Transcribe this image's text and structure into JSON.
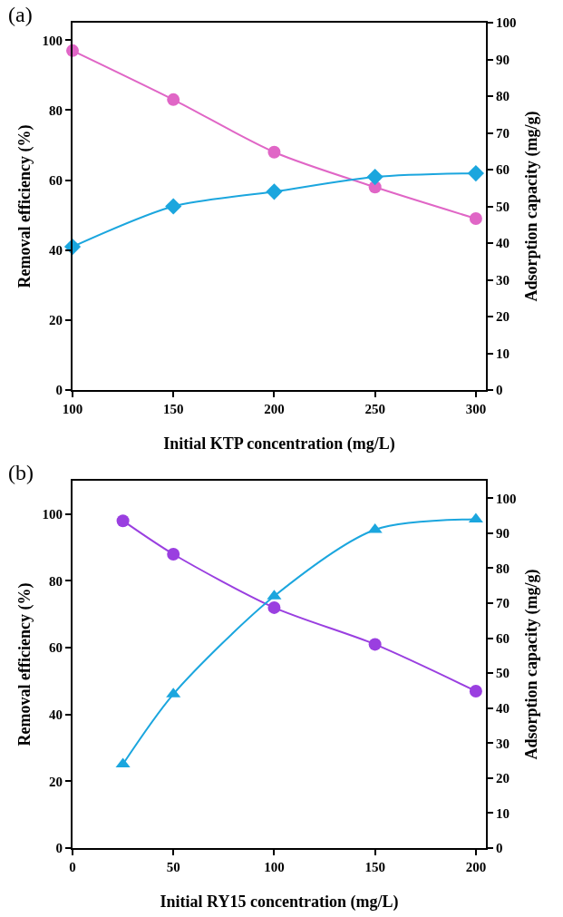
{
  "chart_data": [
    {
      "type": "line",
      "title": "(a)",
      "xlabel": "Initial KTP concentration (mg/L)",
      "ylabel": "Removal efficiency (%)",
      "y2label": "Adsorption capacity (mg/g)",
      "x": [
        100,
        150,
        200,
        250,
        300
      ],
      "series": [
        {
          "color": "#e066c6",
          "marker": "circle",
          "values": [
            97,
            83,
            68,
            58,
            49
          ]
        },
        {
          "color": "#1ba6de",
          "marker": "diamond",
          "axis": "y2",
          "values": [
            39,
            50,
            54,
            58,
            59
          ]
        }
      ],
      "xlim": [
        100,
        305
      ],
      "xticks": [
        100,
        150,
        200,
        250,
        300
      ],
      "ylim": [
        0,
        105
      ],
      "yticks": [
        0,
        20,
        40,
        60,
        80,
        100
      ],
      "y2lim": [
        0,
        100
      ],
      "y2ticks": [
        0,
        10,
        20,
        30,
        40,
        50,
        60,
        70,
        80,
        90,
        100
      ],
      "grid": false,
      "legend": false
    },
    {
      "type": "line",
      "title": "(b)",
      "xlabel": "Initial RY15 concentration (mg/L)",
      "ylabel": "Removal efficiency (%)",
      "y2label": "Adsorption capacity (mg/g)",
      "x": [
        25,
        50,
        100,
        150,
        200
      ],
      "series": [
        {
          "color": "#9a3fe0",
          "marker": "circle",
          "values": [
            98,
            88,
            72,
            61,
            47
          ]
        },
        {
          "color": "#1ba6de",
          "marker": "triangle",
          "axis": "y2",
          "values": [
            24,
            44,
            72,
            91,
            94
          ]
        }
      ],
      "xlim": [
        0,
        205
      ],
      "xticks": [
        0,
        50,
        100,
        150,
        200
      ],
      "ylim": [
        0,
        110
      ],
      "yticks": [
        0,
        20,
        40,
        60,
        80,
        100
      ],
      "y2lim": [
        0,
        105
      ],
      "y2ticks": [
        0,
        10,
        20,
        30,
        40,
        50,
        60,
        70,
        80,
        90,
        100
      ],
      "grid": false,
      "legend": false
    }
  ]
}
